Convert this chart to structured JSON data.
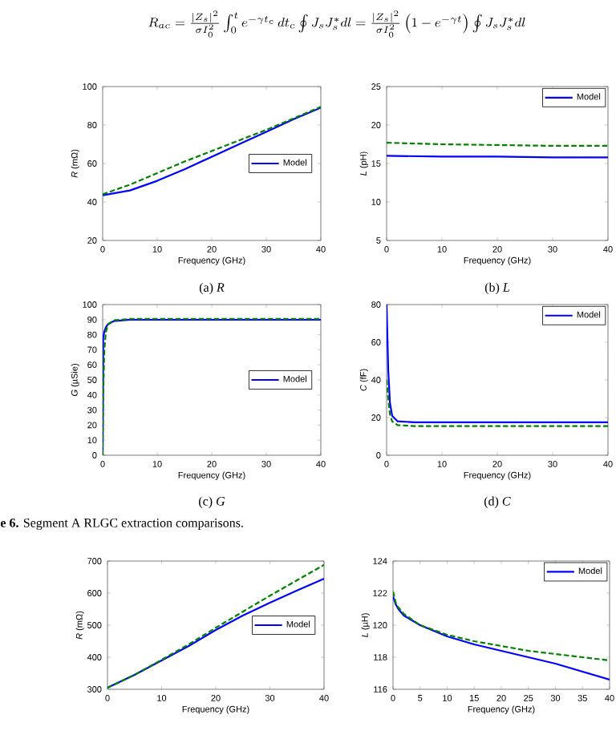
{
  "chart_data": [
    {
      "type": "line",
      "title": "(a) *R*",
      "xlabel": "Frequency (GHz)",
      "ylabel": "*R* (mΩ)",
      "annotations": [
        "R_{ac}=\\frac{|Z_s|^2}{\\sigma I_0^2}\\int_0^t e^{-\\gamma t_c}\\,dt_c\\oint J_sJ_s^*dl=\\frac{|Z_s|^2}{\\sigma I_0^2}\\left(1-e^{-\\gamma t}\\right)\\oint J_sJ_s^*dl"
      ],
      "xlim": [
        0,
        40
      ],
      "ylim": [
        20,
        100
      ],
      "xticks": [
        0,
        10,
        20,
        30,
        40
      ],
      "yticks": [
        20,
        40,
        60,
        80,
        100
      ],
      "legend": "right",
      "x": [
        0,
        5,
        10,
        15,
        20,
        25,
        30,
        35,
        40
      ],
      "series": [
        {
          "name": "Model",
          "color": "#0000ff",
          "line_style": "solid",
          "values": [
            43.5,
            46,
            51,
            57,
            63.5,
            70,
            76.5,
            83,
            89
          ]
        },
        {
          "color": "#008000",
          "line_style": "dashed",
          "values": [
            44,
            49,
            55,
            61,
            66.5,
            72,
            77.5,
            83.5,
            89.5
          ]
        }
      ]
    },
    {
      "type": "line",
      "title": "(b) *L*",
      "xlabel": "Frequency (GHz)",
      "ylabel": "*L* (pH)",
      "xlim": [
        0,
        40
      ],
      "ylim": [
        5,
        25
      ],
      "xticks": [
        0,
        10,
        20,
        30,
        40
      ],
      "yticks": [
        5,
        10,
        15,
        20,
        25
      ],
      "legend": "top right",
      "x": [
        0,
        10,
        20,
        30,
        40
      ],
      "series": [
        {
          "name": "Model",
          "color": "#0000ff",
          "line_style": "solid",
          "values": [
            16,
            15.9,
            15.9,
            15.8,
            15.8
          ]
        },
        {
          "color": "#008000",
          "line_style": "dashed",
          "values": [
            17.7,
            17.5,
            17.4,
            17.3,
            17.3
          ]
        }
      ]
    },
    {
      "type": "line",
      "title": "(c) *G*",
      "xlabel": "Frequency (GHz)",
      "ylabel": "*G* (µSie)",
      "annotations": [
        "**e 6.** Segment A RLGC extraction comparisons."
      ],
      "xlim": [
        0,
        40
      ],
      "ylim": [
        0,
        100
      ],
      "xticks": [
        0,
        10,
        20,
        30,
        40
      ],
      "yticks": [
        0,
        10,
        20,
        30,
        40,
        50,
        60,
        70,
        80,
        90,
        100
      ],
      "legend": "right",
      "x": [
        0,
        0.1,
        0.3,
        0.6,
        1,
        2,
        5,
        40
      ],
      "series": [
        {
          "name": "Model",
          "color": "#0000ff",
          "line_style": "solid",
          "values": [
            0,
            78,
            82,
            85,
            87,
            89,
            90,
            90
          ]
        },
        {
          "color": "#008000",
          "line_style": "dashed",
          "values": [
            0,
            40,
            70,
            82,
            87,
            89.5,
            90.5,
            90.5
          ]
        }
      ]
    },
    {
      "type": "line",
      "title": "(d) *C*",
      "xlabel": "Frequency (GHz)",
      "ylabel": "*C* (fF)",
      "xlim": [
        0,
        40
      ],
      "ylim": [
        0,
        80
      ],
      "xticks": [
        0,
        10,
        20,
        30,
        40
      ],
      "yticks": [
        0,
        20,
        40,
        60,
        80
      ],
      "legend": "top right",
      "x": [
        0,
        0.3,
        0.6,
        1,
        2,
        5,
        40
      ],
      "series": [
        {
          "name": "Model",
          "color": "#0000ff",
          "line_style": "solid",
          "values": [
            80,
            45,
            28,
            21,
            18,
            17.5,
            17.5
          ]
        },
        {
          "color": "#008000",
          "line_style": "dashed",
          "values": [
            40,
            30,
            22,
            18,
            16,
            15.5,
            15.5
          ]
        }
      ]
    },
    {
      "type": "line",
      "xlabel": "Frequency (GHz)",
      "ylabel": "*R* (mΩ)",
      "xlim": [
        0,
        40
      ],
      "ylim": [
        300,
        700
      ],
      "xticks": [
        0,
        10,
        20,
        30,
        40
      ],
      "yticks": [
        300,
        400,
        500,
        600,
        700
      ],
      "legend": "right",
      "x": [
        0,
        5,
        10,
        15,
        20,
        25,
        30,
        35,
        40
      ],
      "series": [
        {
          "name": "Model",
          "color": "#0000ff",
          "line_style": "solid",
          "values": [
            305,
            345,
            390,
            435,
            485,
            530,
            570,
            608,
            645
          ]
        },
        {
          "color": "#008000",
          "line_style": "dashed",
          "values": [
            305,
            345,
            392,
            440,
            492,
            542,
            592,
            640,
            688
          ]
        }
      ]
    },
    {
      "type": "line",
      "xlabel": "Frequency (GHz)",
      "ylabel": "*L* (µH)",
      "xlim": [
        0,
        40
      ],
      "ylim": [
        116,
        124
      ],
      "xticks": [
        0,
        5,
        10,
        15,
        20,
        25,
        30,
        35,
        40
      ],
      "yticks": [
        116,
        118,
        120,
        122,
        124
      ],
      "legend": "top right",
      "x": [
        0,
        0.5,
        1,
        2,
        5,
        10,
        15,
        20,
        25,
        30,
        35,
        40
      ],
      "series": [
        {
          "name": "Model",
          "color": "#0000ff",
          "line_style": "solid",
          "values": [
            121.8,
            121.3,
            121,
            120.6,
            120,
            119.3,
            118.8,
            118.4,
            118,
            117.6,
            117.1,
            116.6
          ]
        },
        {
          "color": "#008000",
          "line_style": "dashed",
          "values": [
            122.1,
            121.4,
            121.1,
            120.7,
            120,
            119.4,
            119,
            118.7,
            118.4,
            118.2,
            118,
            117.8
          ]
        }
      ]
    }
  ]
}
